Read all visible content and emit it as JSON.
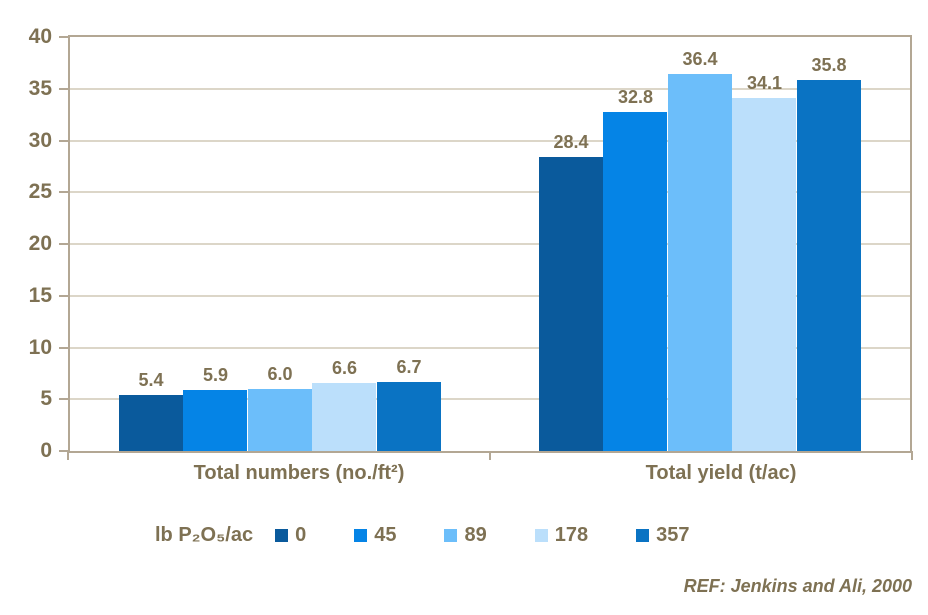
{
  "chart_data": {
    "type": "bar",
    "title": "",
    "categories": [
      "Total numbers (no./ft²)",
      "Total yield (t/ac)"
    ],
    "series": [
      {
        "name": "0",
        "color": "#0A5A9C",
        "values": [
          5.4,
          28.4
        ]
      },
      {
        "name": "45",
        "color": "#0584E6",
        "values": [
          5.9,
          32.8
        ]
      },
      {
        "name": "89",
        "color": "#6CBEFA",
        "values": [
          6.0,
          36.4
        ]
      },
      {
        "name": "178",
        "color": "#BBDFFB",
        "values": [
          6.6,
          34.1
        ]
      },
      {
        "name": "357",
        "color": "#0A73C3",
        "values": [
          6.7,
          35.8
        ]
      }
    ],
    "value_label_decimals": 1,
    "legend_title": "lb P₂O₅/ac",
    "legend_position": "bottom",
    "legend_entries": [
      "0",
      "45",
      "89",
      "178",
      "357"
    ],
    "ylim": [
      0,
      40
    ],
    "yticks": [
      0,
      5,
      10,
      15,
      20,
      25,
      30,
      35,
      40
    ],
    "grid": true,
    "footnote": "REF: Jenkins and Ali, 2000",
    "colors": {
      "text": "#7E7153",
      "gridline": "#DCD6C8",
      "plot_border": "#B3A794",
      "background": "#FFFFFF"
    }
  }
}
